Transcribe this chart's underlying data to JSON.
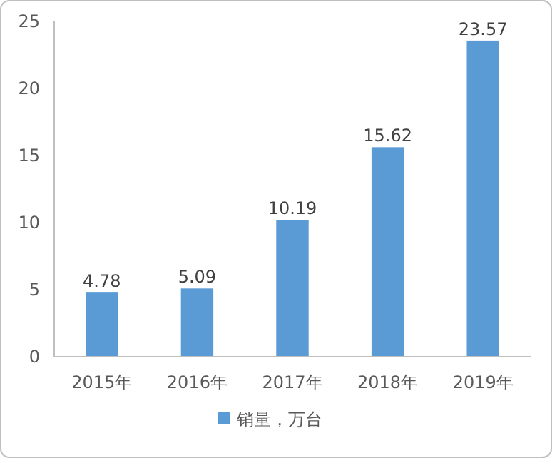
{
  "chart_data": {
    "type": "bar",
    "categories": [
      "2015年",
      "2016年",
      "2017年",
      "2018年",
      "2019年"
    ],
    "series": [
      {
        "name": "销量，万台",
        "color": "#5b9bd5",
        "values": [
          4.78,
          5.09,
          10.19,
          15.62,
          23.57
        ]
      }
    ],
    "ylim": [
      0,
      25
    ],
    "yticks": [
      0,
      5,
      10,
      15,
      20,
      25
    ],
    "data_labels": true,
    "legend": "bottom",
    "grid": false
  }
}
